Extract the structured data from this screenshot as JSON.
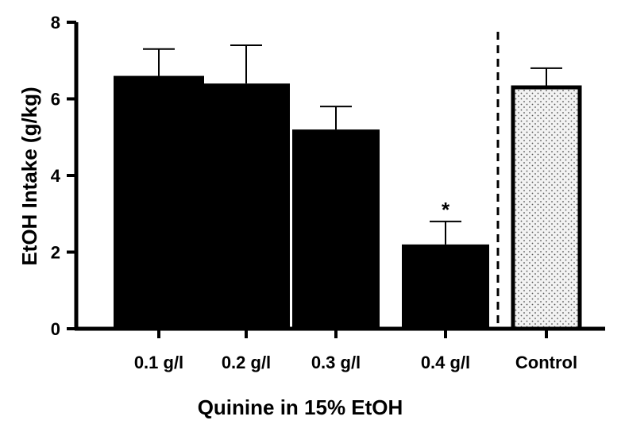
{
  "chart_data": {
    "type": "bar",
    "title": "",
    "xlabel": "Quinine in 15% EtOH",
    "ylabel": "EtOH Intake (g/kg)",
    "ylim": [
      0,
      8
    ],
    "yticks": [
      0,
      2,
      4,
      6,
      8
    ],
    "grid": false,
    "categories": [
      "0.1 g/l",
      "0.2 g/l",
      "0.3 g/l",
      "0.4 g/l",
      "Control"
    ],
    "values": [
      6.6,
      6.4,
      5.2,
      2.2,
      6.3
    ],
    "errors": [
      0.7,
      1.0,
      0.6,
      0.6,
      0.5
    ],
    "annotations": [
      "",
      "",
      "",
      "*",
      ""
    ],
    "colors": {
      "bar_fill": "#000000",
      "control_fill": "#f2f2f2",
      "control_dots": "#555555",
      "axis": "#000000"
    },
    "separator": "dashed vertical line between 0.4 g/l and Control"
  }
}
